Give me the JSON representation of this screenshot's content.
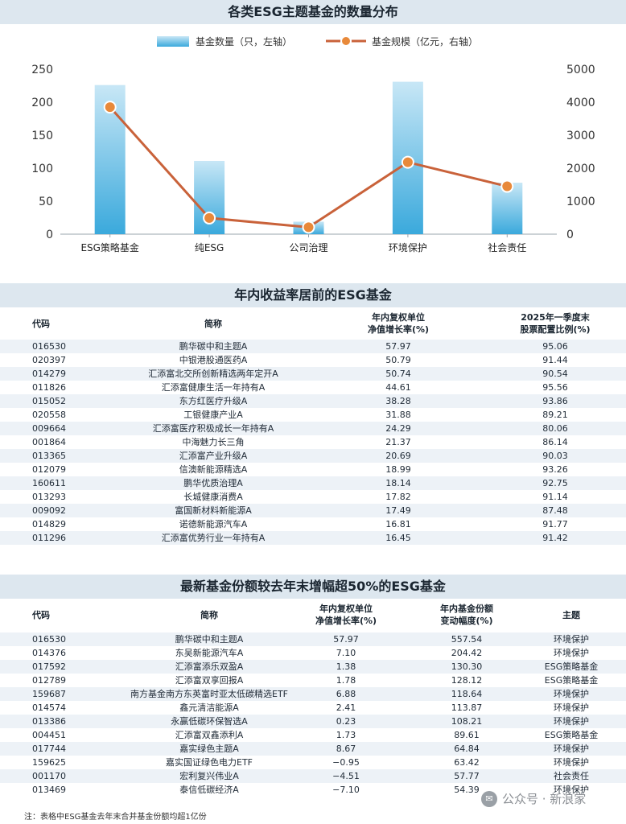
{
  "chart_data": {
    "type": "bar",
    "title": "各类ESG主题基金的数量分布",
    "categories": [
      "ESG策略基金",
      "纯ESG",
      "公司治理",
      "环境保护",
      "社会责任"
    ],
    "series": [
      {
        "name": "基金数量（只，左轴）",
        "type": "bar",
        "axis": "left",
        "values": [
          226,
          111,
          19,
          231,
          78
        ]
      },
      {
        "name": "基金规模（亿元，右轴）",
        "type": "line",
        "axis": "right",
        "values": [
          3850,
          490,
          210,
          2180,
          1450
        ]
      }
    ],
    "yleft": {
      "min": 0,
      "max": 250,
      "ticks": [
        0,
        50,
        100,
        150,
        200,
        250
      ]
    },
    "yright": {
      "min": 0,
      "max": 5000,
      "ticks": [
        0,
        1000,
        2000,
        3000,
        4000,
        5000
      ]
    },
    "legend_position": "top",
    "colors": {
      "bar_top": "#b8def2",
      "bar_bottom": "#4fb3e0",
      "line": "#c9623a",
      "marker": "#e8893a"
    }
  },
  "table1": {
    "title": "年内收益率居前的ESG基金",
    "headers": {
      "code": "代码",
      "name": "简称",
      "ret_line1": "年内复权单位",
      "ret_line2": "净值增长率(%)",
      "ratio_line1": "2025年一季度末",
      "ratio_line2": "股票配置比例(%)"
    },
    "rows": [
      {
        "code": "016530",
        "name": "鹏华碳中和主题A",
        "ret": "57.97",
        "ratio": "95.06"
      },
      {
        "code": "020397",
        "name": "中银港股通医药A",
        "ret": "50.79",
        "ratio": "91.44"
      },
      {
        "code": "014279",
        "name": "汇添富北交所创新精选两年定开A",
        "ret": "50.74",
        "ratio": "90.54"
      },
      {
        "code": "011826",
        "name": "汇添富健康生活一年持有A",
        "ret": "44.61",
        "ratio": "95.56"
      },
      {
        "code": "015052",
        "name": "东方红医疗升级A",
        "ret": "38.28",
        "ratio": "93.86"
      },
      {
        "code": "020558",
        "name": "工银健康产业A",
        "ret": "31.88",
        "ratio": "89.21"
      },
      {
        "code": "009664",
        "name": "汇添富医疗积极成长一年持有A",
        "ret": "24.29",
        "ratio": "80.06"
      },
      {
        "code": "001864",
        "name": "中海魅力长三角",
        "ret": "21.37",
        "ratio": "86.14"
      },
      {
        "code": "013365",
        "name": "汇添富产业升级A",
        "ret": "20.69",
        "ratio": "90.03"
      },
      {
        "code": "012079",
        "name": "信澳新能源精选A",
        "ret": "18.99",
        "ratio": "93.26"
      },
      {
        "code": "160611",
        "name": "鹏华优质治理A",
        "ret": "18.14",
        "ratio": "92.75"
      },
      {
        "code": "013293",
        "name": "长城健康消费A",
        "ret": "17.82",
        "ratio": "91.14"
      },
      {
        "code": "009092",
        "name": "富国新材料新能源A",
        "ret": "17.49",
        "ratio": "87.48"
      },
      {
        "code": "014829",
        "name": "诺德新能源汽车A",
        "ret": "16.81",
        "ratio": "91.77"
      },
      {
        "code": "011296",
        "name": "汇添富优势行业一年持有A",
        "ret": "16.45",
        "ratio": "91.42"
      }
    ]
  },
  "table2": {
    "title": "最新基金份额较去年末增幅超50%的ESG基金",
    "headers": {
      "code": "代码",
      "name": "简称",
      "ret_line1": "年内复权单位",
      "ret_line2": "净值增长率(%)",
      "chg_line1": "年内基金份额",
      "chg_line2": "变动幅度(%)",
      "theme": "主题"
    },
    "rows": [
      {
        "code": "016530",
        "name": "鹏华碳中和主题A",
        "ret": "57.97",
        "chg": "557.54",
        "theme": "环境保护"
      },
      {
        "code": "014376",
        "name": "东吴新能源汽车A",
        "ret": "7.10",
        "chg": "204.42",
        "theme": "环境保护"
      },
      {
        "code": "017592",
        "name": "汇添富添乐双盈A",
        "ret": "1.38",
        "chg": "130.30",
        "theme": "ESG策略基金"
      },
      {
        "code": "012789",
        "name": "汇添富双享回报A",
        "ret": "1.78",
        "chg": "128.12",
        "theme": "ESG策略基金"
      },
      {
        "code": "159687",
        "name": "南方基金南方东英富时亚太低碳精选ETF",
        "ret": "6.88",
        "chg": "118.64",
        "theme": "环境保护"
      },
      {
        "code": "014574",
        "name": "鑫元清洁能源A",
        "ret": "2.41",
        "chg": "113.87",
        "theme": "环境保护"
      },
      {
        "code": "013386",
        "name": "永赢低碳环保智选A",
        "ret": "0.23",
        "chg": "108.21",
        "theme": "环境保护"
      },
      {
        "code": "004451",
        "name": "汇添富双鑫添利A",
        "ret": "1.73",
        "chg": "89.61",
        "theme": "ESG策略基金"
      },
      {
        "code": "017744",
        "name": "嘉实绿色主题A",
        "ret": "8.67",
        "chg": "64.84",
        "theme": "环境保护"
      },
      {
        "code": "159625",
        "name": "嘉实国证绿色电力ETF",
        "ret": "−0.95",
        "chg": "63.42",
        "theme": "环境保护"
      },
      {
        "code": "001170",
        "name": "宏利复兴伟业A",
        "ret": "−4.51",
        "chg": "57.77",
        "theme": "社会责任"
      },
      {
        "code": "013469",
        "name": "泰信低碳经济A",
        "ret": "−7.10",
        "chg": "54.39",
        "theme": "环境保护"
      }
    ]
  },
  "note": "注：表格中ESG基金去年末合并基金份额均超1亿份",
  "watermark": "公众号 · 新浪家"
}
